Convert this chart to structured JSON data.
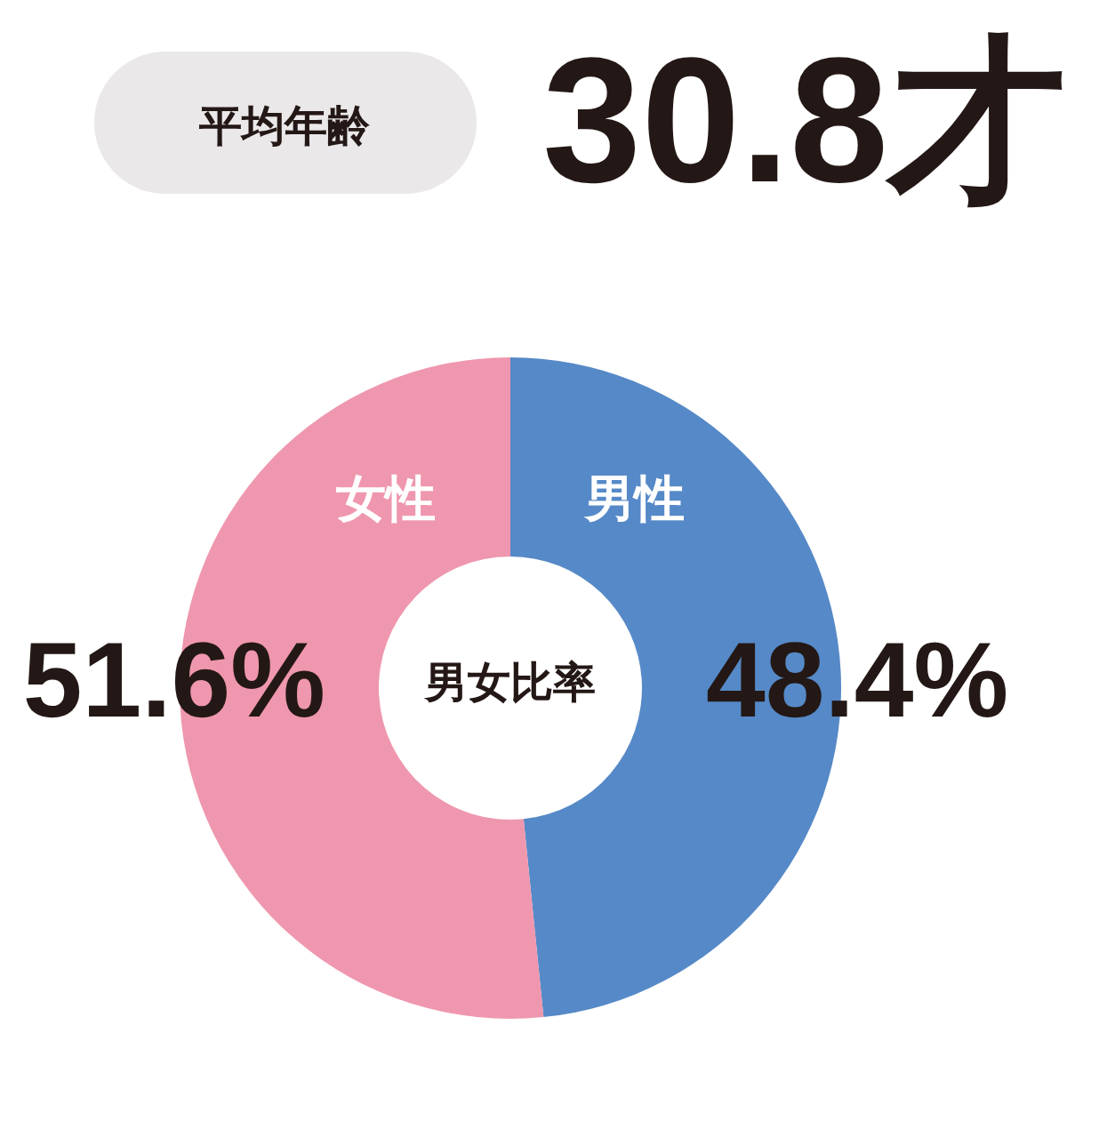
{
  "chart_data": {
    "type": "donut",
    "categories": [
      "男性",
      "女性"
    ],
    "values": [
      48.4,
      51.6
    ],
    "colors": [
      "#5689c7",
      "#ef97ae"
    ],
    "value_labels": [
      "48.4%",
      "51.6%"
    ],
    "annotations": [
      "平均年齢",
      "30.8才",
      "男女比率"
    ]
  }
}
